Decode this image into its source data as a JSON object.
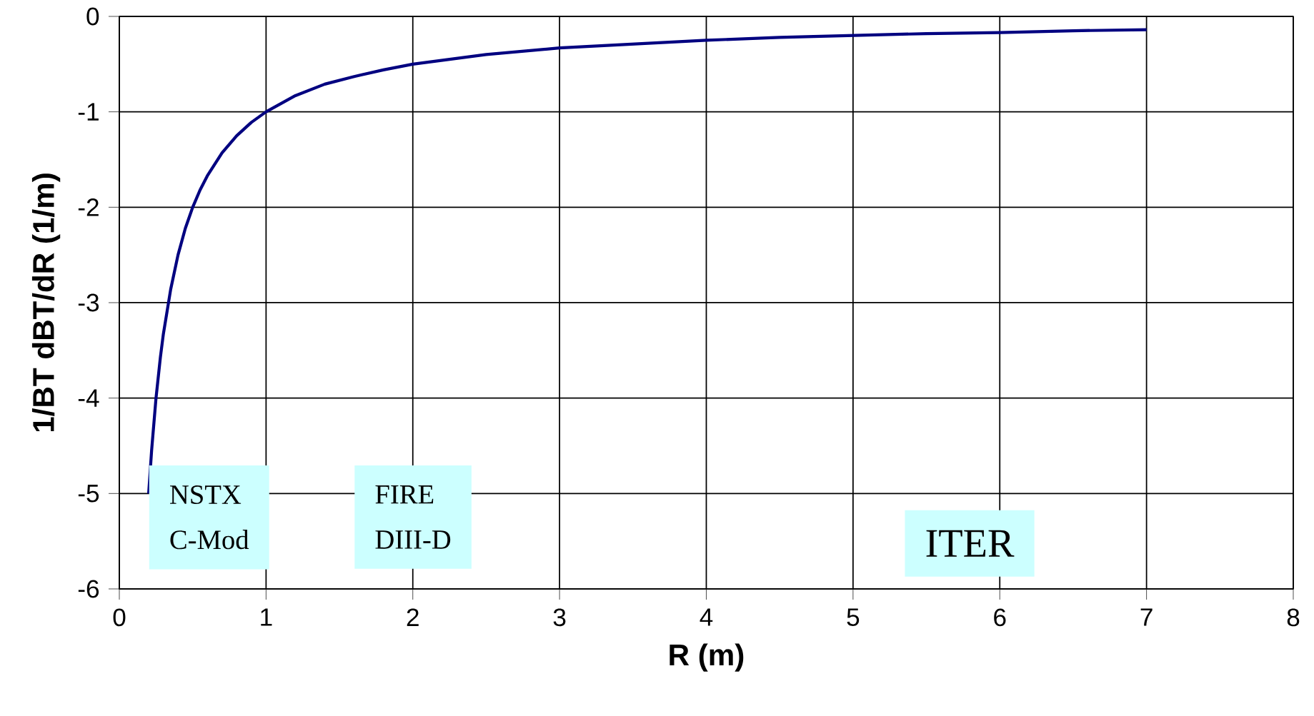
{
  "chart_data": {
    "type": "line",
    "xlabel": "R (m)",
    "ylabel": "1/BT dBT/dR (1/m)",
    "x": [
      0.2,
      0.22,
      0.25,
      0.28,
      0.3,
      0.35,
      0.4,
      0.45,
      0.5,
      0.55,
      0.6,
      0.7,
      0.8,
      0.9,
      1,
      1.2,
      1.4,
      1.6,
      1.8,
      2,
      2.5,
      3,
      3.5,
      4,
      4.5,
      5,
      5.5,
      6,
      6.5,
      7
    ],
    "series": [
      {
        "color": "#000080",
        "values": [
          -5,
          -4.55,
          -4,
          -3.57,
          -3.33,
          -2.86,
          -2.5,
          -2.22,
          -2,
          -1.82,
          -1.67,
          -1.43,
          -1.25,
          -1.11,
          -1,
          -0.83,
          -0.71,
          -0.63,
          -0.56,
          -0.5,
          -0.4,
          -0.33,
          -0.29,
          -0.25,
          -0.22,
          -0.2,
          -0.18,
          -0.17,
          -0.15,
          -0.14
        ]
      }
    ],
    "xlim": [
      0,
      8
    ],
    "ylim": [
      -6,
      0
    ],
    "xticks": [
      0,
      1,
      2,
      3,
      4,
      5,
      6,
      7,
      8
    ],
    "yticks": [
      -6,
      -5,
      -4,
      -3,
      -2,
      -1,
      0
    ],
    "grid": true,
    "marker": "none",
    "line_style": "solid",
    "annotations": [
      "NSTX",
      "C-Mod",
      "FIRE",
      "DIII-D",
      "ITER"
    ]
  }
}
